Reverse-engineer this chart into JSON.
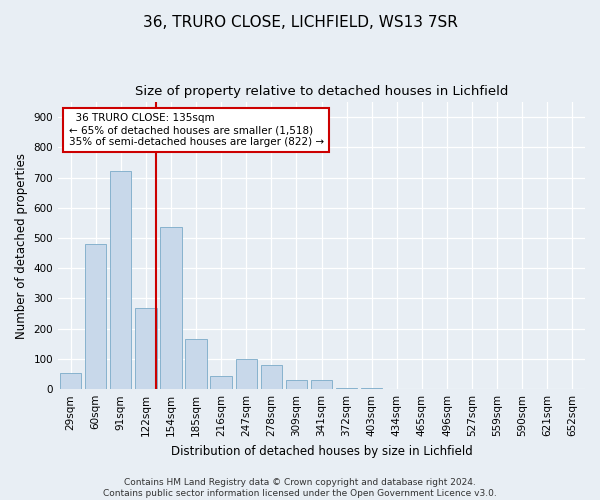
{
  "title": "36, TRURO CLOSE, LICHFIELD, WS13 7SR",
  "subtitle": "Size of property relative to detached houses in Lichfield",
  "xlabel": "Distribution of detached houses by size in Lichfield",
  "ylabel": "Number of detached properties",
  "categories": [
    "29sqm",
    "60sqm",
    "91sqm",
    "122sqm",
    "154sqm",
    "185sqm",
    "216sqm",
    "247sqm",
    "278sqm",
    "309sqm",
    "341sqm",
    "372sqm",
    "403sqm",
    "434sqm",
    "465sqm",
    "496sqm",
    "527sqm",
    "559sqm",
    "590sqm",
    "621sqm",
    "652sqm"
  ],
  "values": [
    55,
    480,
    720,
    270,
    535,
    165,
    45,
    100,
    80,
    30,
    30,
    5,
    5,
    0,
    0,
    0,
    0,
    0,
    0,
    0,
    0
  ],
  "bar_color": "#c8d8ea",
  "bar_edge_color": "#7aaac8",
  "vline_color": "#cc0000",
  "annotation_line1": "  36 TRURO CLOSE: 135sqm",
  "annotation_line2": "← 65% of detached houses are smaller (1,518)",
  "annotation_line3": "35% of semi-detached houses are larger (822) →",
  "annotation_box_color": "#ffffff",
  "annotation_box_edge": "#cc0000",
  "ylim": [
    0,
    950
  ],
  "yticks": [
    0,
    100,
    200,
    300,
    400,
    500,
    600,
    700,
    800,
    900
  ],
  "background_color": "#e8eef4",
  "plot_background": "#e8eef4",
  "footer": "Contains HM Land Registry data © Crown copyright and database right 2024.\nContains public sector information licensed under the Open Government Licence v3.0.",
  "title_fontsize": 11,
  "subtitle_fontsize": 9.5,
  "axis_label_fontsize": 8.5,
  "tick_fontsize": 7.5,
  "footer_fontsize": 6.5
}
